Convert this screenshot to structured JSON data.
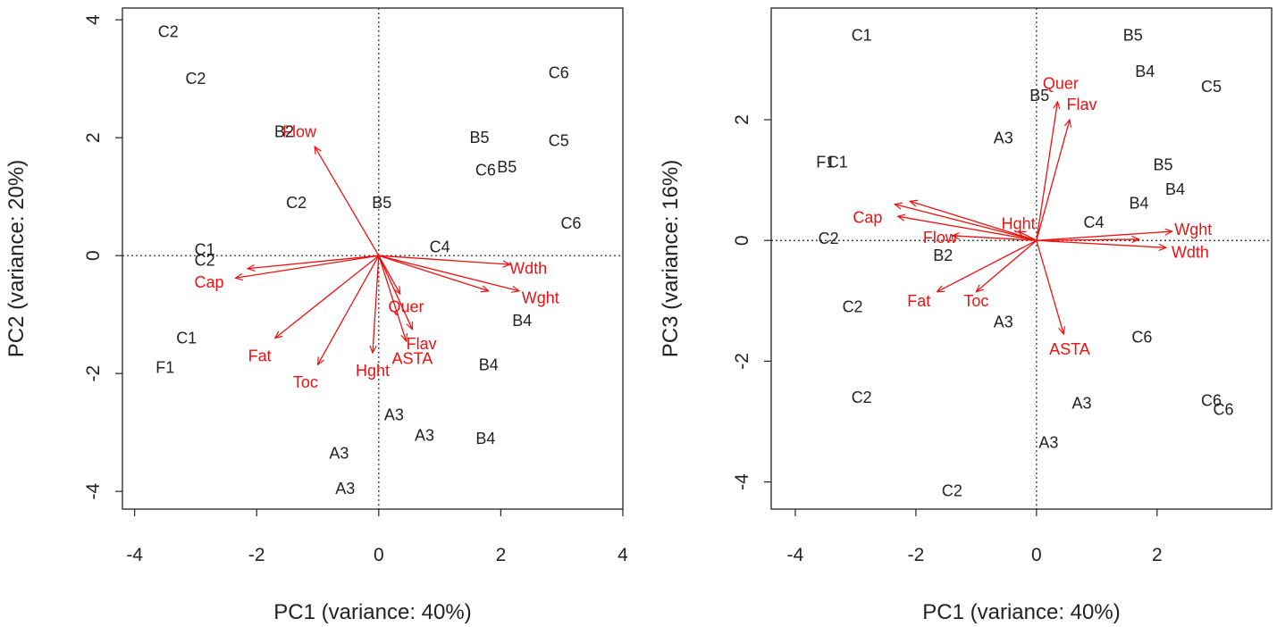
{
  "colors": {
    "observations": "#222222",
    "variables": "#ee1111",
    "axes": "#222222",
    "background": "#ffffff"
  },
  "chart_data": [
    {
      "type": "scatter",
      "subtype": "biplot",
      "title": "",
      "xlabel": "PC1 (variance: 40%)",
      "ylabel": "PC2 (variance: 20%)",
      "xlim": [
        -4.2,
        4.0
      ],
      "ylim": [
        -4.3,
        4.2
      ],
      "xticks": [
        -4,
        -2,
        0,
        2,
        4
      ],
      "yticks": [
        -4,
        -2,
        0,
        2,
        4
      ],
      "xtick_labels": [
        "-4",
        "-2",
        "0",
        "2",
        "4"
      ],
      "ytick_labels": [
        "-4",
        "-2",
        "0",
        "2",
        "4"
      ],
      "grid": false,
      "reference_lines": [
        {
          "axis": "x",
          "value": 0
        },
        {
          "axis": "y",
          "value": 0
        }
      ],
      "observations": [
        {
          "label": "C2",
          "x": -3.45,
          "y": 3.8
        },
        {
          "label": "C2",
          "x": -3.0,
          "y": 3.0
        },
        {
          "label": "B2",
          "x": -1.55,
          "y": 2.1
        },
        {
          "label": "C2",
          "x": -1.35,
          "y": 0.9
        },
        {
          "label": "B5",
          "x": 0.05,
          "y": 0.9
        },
        {
          "label": "B5",
          "x": 1.65,
          "y": 2.0
        },
        {
          "label": "C5",
          "x": 2.95,
          "y": 1.95
        },
        {
          "label": "C6",
          "x": 2.95,
          "y": 3.1
        },
        {
          "label": "C6",
          "x": 1.75,
          "y": 1.45
        },
        {
          "label": "B5",
          "x": 2.1,
          "y": 1.5
        },
        {
          "label": "C6",
          "x": 3.15,
          "y": 0.55
        },
        {
          "label": "C4",
          "x": 1.0,
          "y": 0.15
        },
        {
          "label": "C1",
          "x": -2.85,
          "y": 0.1
        },
        {
          "label": "C2",
          "x": -2.85,
          "y": -0.08
        },
        {
          "label": "B4",
          "x": 2.35,
          "y": -1.1
        },
        {
          "label": "C1",
          "x": -3.15,
          "y": -1.4
        },
        {
          "label": "F1",
          "x": -3.5,
          "y": -1.9
        },
        {
          "label": "B4",
          "x": 1.8,
          "y": -1.85
        },
        {
          "label": "A3",
          "x": 0.25,
          "y": -2.7
        },
        {
          "label": "A3",
          "x": 0.75,
          "y": -3.05
        },
        {
          "label": "B4",
          "x": 1.75,
          "y": -3.1
        },
        {
          "label": "A3",
          "x": -0.65,
          "y": -3.35
        },
        {
          "label": "A3",
          "x": -0.55,
          "y": -3.95
        }
      ],
      "loadings": [
        {
          "label": "Flow",
          "x": -1.05,
          "y": 1.85,
          "lx": -1.3,
          "ly": 2.1
        },
        {
          "label": "Wdth",
          "x": 2.15,
          "y": -0.15,
          "lx": 2.45,
          "ly": -0.22
        },
        {
          "label": "Wght",
          "x": 2.3,
          "y": -0.6,
          "lx": 2.65,
          "ly": -0.72
        },
        {
          "label": "",
          "x": 1.8,
          "y": -0.6,
          "lx": 0,
          "ly": 0
        },
        {
          "label": "Cap",
          "x": -2.35,
          "y": -0.38,
          "lx": -2.78,
          "ly": -0.45
        },
        {
          "label": "",
          "x": -2.15,
          "y": -0.22,
          "lx": 0,
          "ly": 0
        },
        {
          "label": "Fat",
          "x": -1.7,
          "y": -1.4,
          "lx": -1.95,
          "ly": -1.7
        },
        {
          "label": "Toc",
          "x": -1.0,
          "y": -1.85,
          "lx": -1.2,
          "ly": -2.15
        },
        {
          "label": "Hght",
          "x": -0.1,
          "y": -1.65,
          "lx": -0.1,
          "ly": -1.95
        },
        {
          "label": "Quer",
          "x": 0.35,
          "y": -0.65,
          "lx": 0.45,
          "ly": -0.87
        },
        {
          "label": "Flav",
          "x": 0.55,
          "y": -1.25,
          "lx": 0.7,
          "ly": -1.5
        },
        {
          "label": "ASTA",
          "x": 0.45,
          "y": -1.45,
          "lx": 0.55,
          "ly": -1.75
        }
      ]
    },
    {
      "type": "scatter",
      "subtype": "biplot",
      "title": "",
      "xlabel": "PC1 (variance: 40%)",
      "ylabel": "PC3 (variance: 16%)",
      "xlim": [
        -4.4,
        3.9
      ],
      "ylim": [
        -4.45,
        3.85
      ],
      "xticks": [
        -4,
        -2,
        0,
        2
      ],
      "yticks": [
        -4,
        -2,
        0,
        2
      ],
      "xtick_labels": [
        "-4",
        "-2",
        "0",
        "2"
      ],
      "ytick_labels": [
        "-4",
        "-2",
        "0",
        "2"
      ],
      "grid": false,
      "reference_lines": [
        {
          "axis": "x",
          "value": 0
        },
        {
          "axis": "y",
          "value": 0
        }
      ],
      "observations": [
        {
          "label": "C1",
          "x": -2.9,
          "y": 3.4
        },
        {
          "label": "B5",
          "x": 1.6,
          "y": 3.4
        },
        {
          "label": "B4",
          "x": 1.8,
          "y": 2.8
        },
        {
          "label": "C5",
          "x": 2.9,
          "y": 2.55
        },
        {
          "label": "B5",
          "x": 0.05,
          "y": 2.4
        },
        {
          "label": "A3",
          "x": -0.55,
          "y": 1.7
        },
        {
          "label": "F1",
          "x": -3.5,
          "y": 1.3
        },
        {
          "label": "C1",
          "x": -3.3,
          "y": 1.3
        },
        {
          "label": "B5",
          "x": 2.1,
          "y": 1.25
        },
        {
          "label": "B4",
          "x": 2.3,
          "y": 0.85
        },
        {
          "label": "B4",
          "x": 1.7,
          "y": 0.62
        },
        {
          "label": "C4",
          "x": 0.95,
          "y": 0.3
        },
        {
          "label": "C2",
          "x": -3.45,
          "y": 0.03
        },
        {
          "label": "B2",
          "x": -1.55,
          "y": -0.25
        },
        {
          "label": "C2",
          "x": -3.05,
          "y": -1.1
        },
        {
          "label": "A3",
          "x": -0.55,
          "y": -1.35
        },
        {
          "label": "C6",
          "x": 1.75,
          "y": -1.6
        },
        {
          "label": "C2",
          "x": -2.9,
          "y": -2.6
        },
        {
          "label": "A3",
          "x": 0.75,
          "y": -2.7
        },
        {
          "label": "C6",
          "x": 2.9,
          "y": -2.65
        },
        {
          "label": "C6",
          "x": 3.1,
          "y": -2.8
        },
        {
          "label": "A3",
          "x": 0.2,
          "y": -3.35
        },
        {
          "label": "C2",
          "x": -1.4,
          "y": -4.15
        }
      ],
      "loadings": [
        {
          "label": "Quer",
          "x": 0.35,
          "y": 2.3,
          "lx": 0.4,
          "ly": 2.6
        },
        {
          "label": "Flav",
          "x": 0.55,
          "y": 2.0,
          "lx": 0.75,
          "ly": 2.25
        },
        {
          "label": "Hght",
          "x": -0.3,
          "y": 0.15,
          "lx": -0.3,
          "ly": 0.28
        },
        {
          "label": "Cap",
          "x": -2.35,
          "y": 0.6,
          "lx": -2.8,
          "ly": 0.38
        },
        {
          "label": "",
          "x": -2.3,
          "y": 0.4,
          "lx": 0,
          "ly": 0
        },
        {
          "label": "",
          "x": -2.1,
          "y": 0.65,
          "lx": 0,
          "ly": 0
        },
        {
          "label": "Flow",
          "x": -1.4,
          "y": 0.08,
          "lx": -1.6,
          "ly": 0.05
        },
        {
          "label": "Wght",
          "x": 2.25,
          "y": 0.15,
          "lx": 2.6,
          "ly": 0.18
        },
        {
          "label": "Wdth",
          "x": 2.15,
          "y": -0.12,
          "lx": 2.55,
          "ly": -0.2
        },
        {
          "label": "",
          "x": 1.7,
          "y": 0.02,
          "lx": 0,
          "ly": 0
        },
        {
          "label": "Fat",
          "x": -1.65,
          "y": -0.85,
          "lx": -1.95,
          "ly": -1.0
        },
        {
          "label": "Toc",
          "x": -1.0,
          "y": -0.85,
          "lx": -1.0,
          "ly": -1.0
        },
        {
          "label": "ASTA",
          "x": 0.45,
          "y": -1.55,
          "lx": 0.55,
          "ly": -1.8
        }
      ]
    }
  ]
}
